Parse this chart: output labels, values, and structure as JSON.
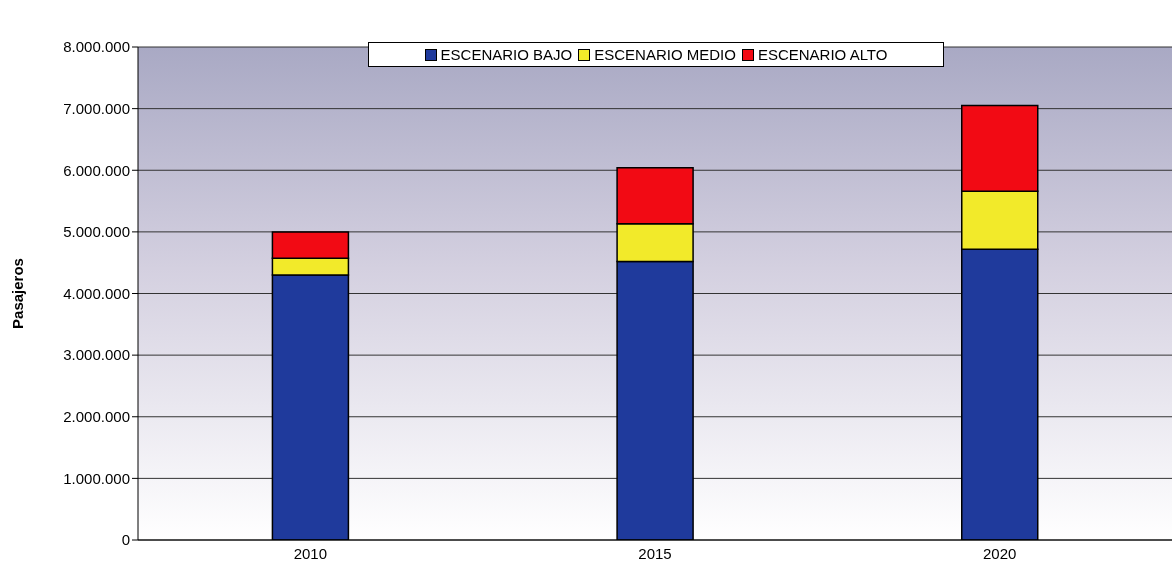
{
  "chart_data": {
    "type": "bar",
    "stacked": true,
    "ylabel": "Pasajeros",
    "categories": [
      "2010",
      "2015",
      "2020"
    ],
    "series": [
      {
        "name": "ESCENARIO BAJO",
        "color": "#1f3a9c",
        "values": [
          4300000,
          4520000,
          4720000
        ]
      },
      {
        "name": "ESCENARIO MEDIO",
        "color": "#f2ea2a",
        "values": [
          270000,
          610000,
          940000
        ]
      },
      {
        "name": "ESCENARIO ALTO",
        "color": "#f20a14",
        "values": [
          430000,
          910000,
          1390000
        ]
      }
    ],
    "ylim": [
      0,
      8000000
    ],
    "yticks": [
      {
        "value": 0,
        "label": "0"
      },
      {
        "value": 1000000,
        "label": "1.000.000"
      },
      {
        "value": 2000000,
        "label": "2.000.000"
      },
      {
        "value": 3000000,
        "label": "3.000.000"
      },
      {
        "value": 4000000,
        "label": "4.000.000"
      },
      {
        "value": 5000000,
        "label": "5.000.000"
      },
      {
        "value": 6000000,
        "label": "6.000.000"
      },
      {
        "value": 7000000,
        "label": "7.000.000"
      },
      {
        "value": 8000000,
        "label": "8.000.000"
      }
    ],
    "grid": "y",
    "legend": "top"
  }
}
